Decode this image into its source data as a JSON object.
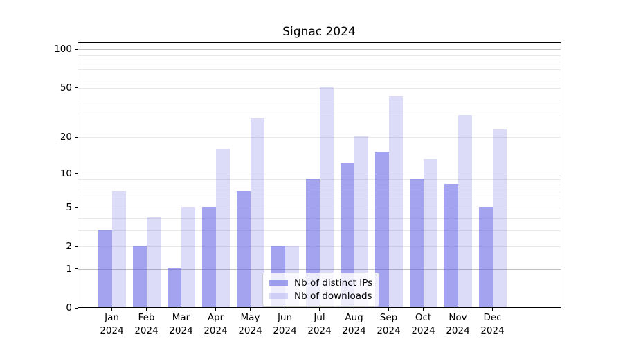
{
  "chart_data": {
    "type": "bar",
    "title": "Signac 2024",
    "months": [
      "Jan",
      "Feb",
      "Mar",
      "Apr",
      "May",
      "Jun",
      "Jul",
      "Aug",
      "Sep",
      "Oct",
      "Nov",
      "Dec"
    ],
    "year_label": "2024",
    "series": [
      {
        "name": "Nb of distinct IPs",
        "values": [
          3,
          2,
          1,
          5,
          7,
          2,
          9,
          12,
          15,
          9,
          8,
          5
        ],
        "color": "rgba(88,88,228,0.55)"
      },
      {
        "name": "Nb of downloads",
        "values": [
          7,
          4,
          5,
          16,
          28,
          2,
          50,
          20,
          42,
          13,
          30,
          23
        ],
        "color": "rgba(88,88,228,0.21)"
      }
    ],
    "y_axis": {
      "scale": "log1p",
      "tick_labels": [
        "0",
        "1",
        "2",
        "5",
        "10",
        "20",
        "50",
        "100"
      ],
      "ticks": [
        0,
        1,
        2,
        5,
        10,
        20,
        50,
        100
      ],
      "max": 113.6,
      "major_gridlines": [
        1,
        10,
        100
      ],
      "minor_gridlines": [
        2,
        3,
        4,
        5,
        6,
        7,
        8,
        9,
        20,
        30,
        40,
        50,
        60,
        70,
        80,
        90
      ]
    },
    "legend": {
      "position": "lower center",
      "entries": [
        "Nb of distinct IPs",
        "Nb of downloads"
      ]
    },
    "grid": {
      "minor_color": "#e8e8e8",
      "major_color": "#c0c0c0"
    }
  }
}
